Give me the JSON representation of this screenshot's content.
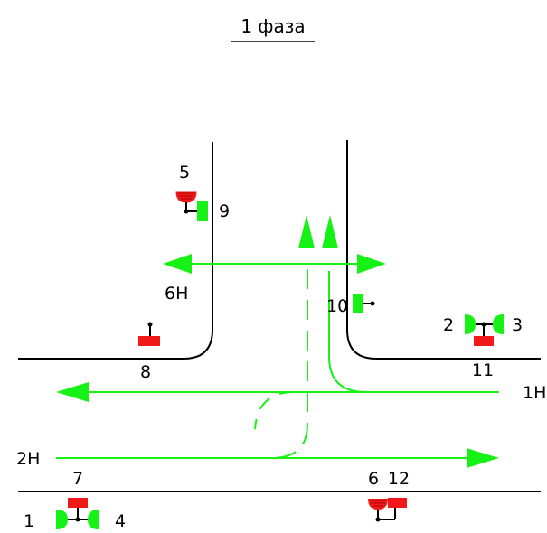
{
  "title": "1 фаза",
  "colors": {
    "movement": "#16f216",
    "signal_green": "#16f216",
    "signal_red": "#f01818",
    "road_line": "#000000"
  },
  "labels": {
    "lane_1h": "1Н",
    "lane_2h": "2Н",
    "lane_6h": "6Н",
    "signal_1": "1",
    "signal_2": "2",
    "signal_3": "3",
    "signal_4": "4",
    "signal_5": "5",
    "signal_6": "6",
    "signal_7": "7",
    "signal_8": "8",
    "signal_9": "9",
    "signal_10": "10",
    "signal_11": "11",
    "signal_12": "12"
  }
}
